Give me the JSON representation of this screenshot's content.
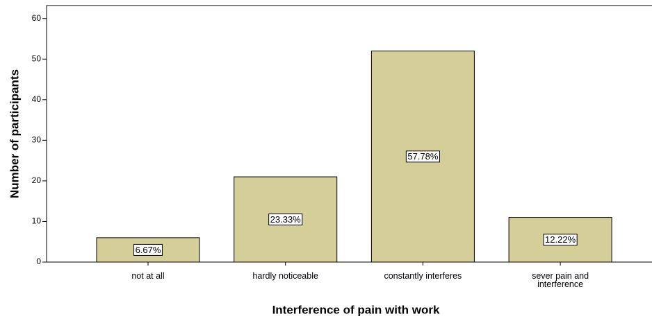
{
  "chart_data": {
    "type": "bar",
    "xlabel": "Interference of pain with work",
    "ylabel": "Number of participants",
    "categories": [
      "not at all",
      "hardly noticeable",
      "constantly interferes",
      "sever pain and interference"
    ],
    "values": [
      6,
      21,
      52,
      11
    ],
    "data_labels": [
      "6.67%",
      "23.33%",
      "57.78%",
      "12.22%"
    ],
    "color": "#d4cf99",
    "ylim": [
      0,
      63.2
    ],
    "yticks": [
      0,
      10,
      20,
      30,
      40,
      50,
      60
    ],
    "grid": false
  }
}
